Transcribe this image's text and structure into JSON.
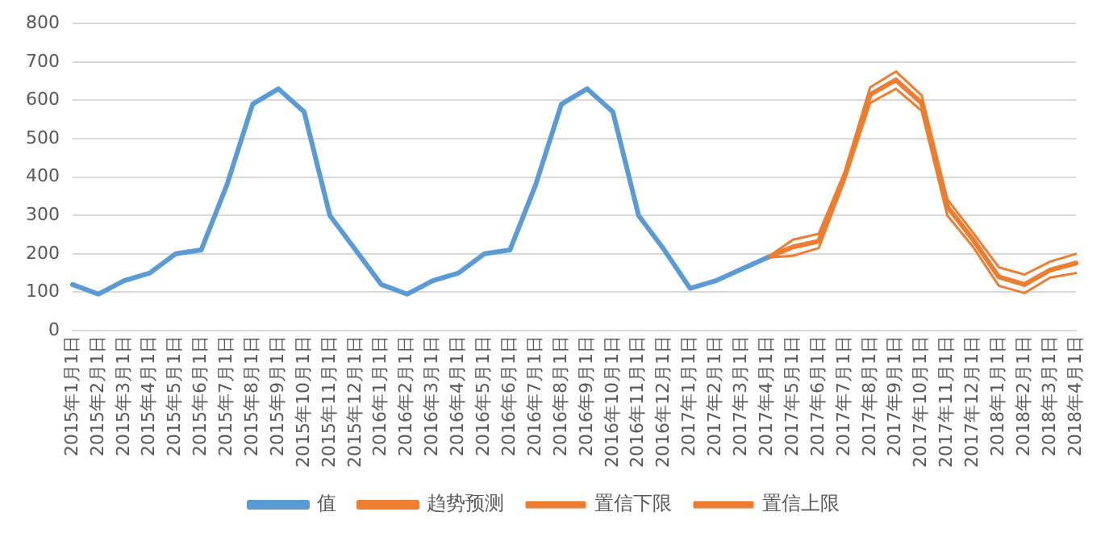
{
  "chart_data": {
    "type": "line",
    "categories": [
      "2015年1月1日",
      "2015年2月1日",
      "2015年3月1日",
      "2015年4月1日",
      "2015年5月1日",
      "2015年6月1日",
      "2015年7月1日",
      "2015年8月1日",
      "2015年9月1日",
      "2015年10月1日",
      "2015年11月1日",
      "2015年12月1日",
      "2016年1月1日",
      "2016年2月1日",
      "2016年3月1日",
      "2016年4月1日",
      "2016年5月1日",
      "2016年6月1日",
      "2016年7月1日",
      "2016年8月1日",
      "2016年9月1日",
      "2016年10月1日",
      "2016年11月1日",
      "2016年12月1日",
      "2017年1月1日",
      "2017年2月1日",
      "2017年3月1日",
      "2017年4月1日",
      "2017年5月1日",
      "2017年6月1日",
      "2017年7月1日",
      "2017年8月1日",
      "2017年9月1日",
      "2017年10月1日",
      "2017年11月1日",
      "2017年12月1日",
      "2018年1月1日",
      "2018年2月1日",
      "2018年3月1日",
      "2018年4月1日"
    ],
    "series": [
      {
        "name": "值",
        "color": "#5b9bd5",
        "values": [
          120,
          95,
          130,
          150,
          200,
          210,
          380,
          590,
          630,
          570,
          300,
          210,
          120,
          95,
          130,
          150,
          200,
          210,
          380,
          590,
          630,
          570,
          300,
          210,
          110,
          130,
          160,
          190,
          null,
          null,
          null,
          null,
          null,
          null,
          null,
          null,
          null,
          null,
          null,
          null
        ]
      },
      {
        "name": "趋势预测",
        "color": "#ed7d31",
        "values": [
          null,
          null,
          null,
          null,
          null,
          null,
          null,
          null,
          null,
          null,
          null,
          null,
          null,
          null,
          null,
          null,
          null,
          null,
          null,
          null,
          null,
          null,
          null,
          null,
          null,
          null,
          null,
          190,
          218,
          233,
          400,
          615,
          653,
          593,
          323,
          237,
          140,
          120,
          158,
          176
        ]
      },
      {
        "name": "置信下限",
        "color": "#ed7d31",
        "values": [
          null,
          null,
          null,
          null,
          null,
          null,
          null,
          null,
          null,
          null,
          null,
          null,
          null,
          null,
          null,
          null,
          null,
          null,
          null,
          null,
          null,
          null,
          null,
          null,
          null,
          null,
          null,
          190,
          195,
          215,
          390,
          593,
          630,
          573,
          300,
          218,
          117,
          98,
          138,
          150
        ]
      },
      {
        "name": "置信上限",
        "color": "#ed7d31",
        "values": [
          null,
          null,
          null,
          null,
          null,
          null,
          null,
          null,
          null,
          null,
          null,
          null,
          null,
          null,
          null,
          null,
          null,
          null,
          null,
          null,
          null,
          null,
          null,
          null,
          null,
          null,
          null,
          190,
          237,
          252,
          412,
          634,
          675,
          613,
          342,
          255,
          165,
          146,
          180,
          200
        ]
      }
    ],
    "ylim": [
      0,
      800
    ],
    "yticks": [
      0,
      100,
      200,
      300,
      400,
      500,
      600,
      700,
      800
    ],
    "grid": "y",
    "legend": "bottom",
    "marker": "none",
    "line_style": "solid"
  }
}
